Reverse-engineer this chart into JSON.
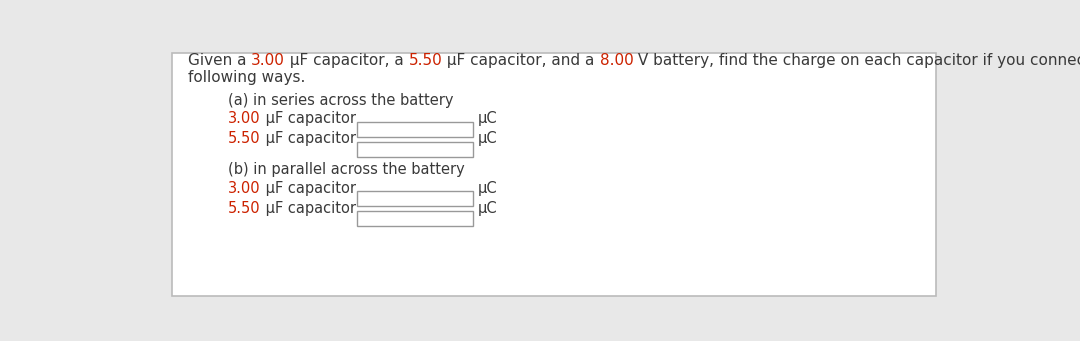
{
  "bg_color": "#e8e8e8",
  "card_color": "#ffffff",
  "card_border_color": "#bbbbbb",
  "text_color": "#3a3a3a",
  "red_color": "#cc2200",
  "intro_line1": {
    "prefix": "Given a ",
    "val1": "3.00",
    "mid1": " μF capacitor, a ",
    "val2": "5.50",
    "mid2": " μF capacitor, and a ",
    "val3": "8.00",
    "suffix": " V battery, find the charge on each capacitor if you connect them in the"
  },
  "intro_line2": "following ways.",
  "section_a_label": "(a) in series across the battery",
  "section_b_label": "(b) in parallel across the battery",
  "cap1_red": "3.00",
  "cap1_black": " μF capacitor",
  "cap2_red": "5.50",
  "cap2_black": " μF capacitor",
  "uc_label": "μC",
  "input_box_color": "#ffffff",
  "input_box_border": "#999999",
  "font_size_intro": 11.0,
  "font_size_section": 10.5,
  "font_size_cap": 10.5
}
